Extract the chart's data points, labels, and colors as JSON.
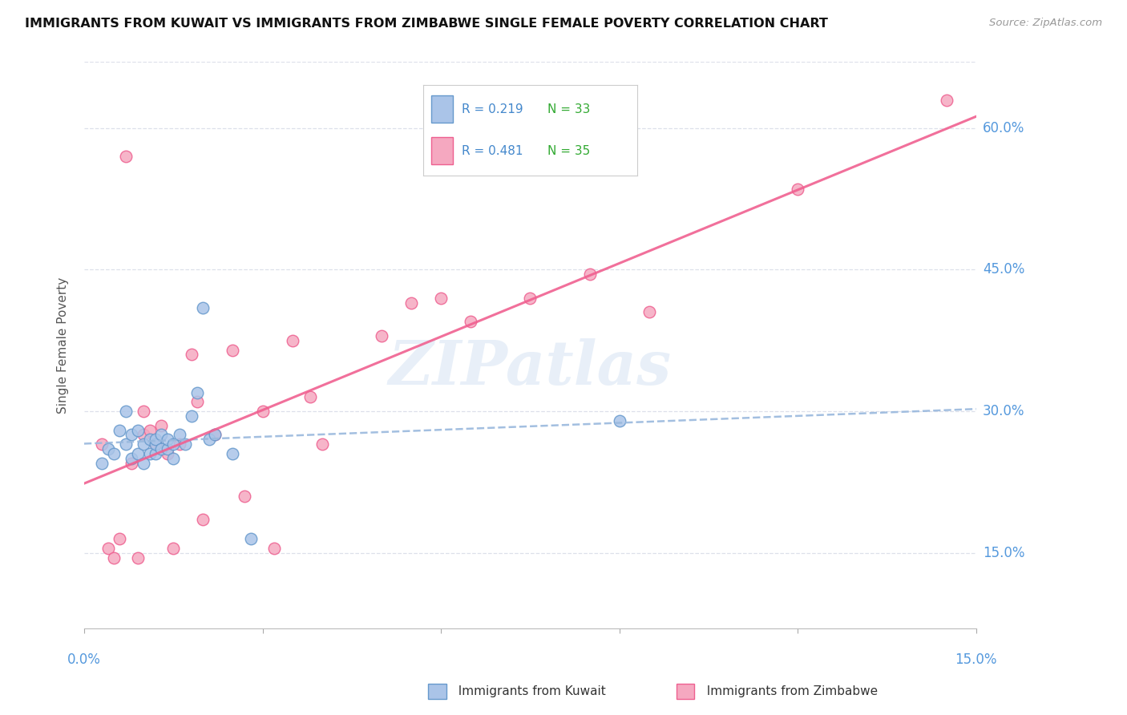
{
  "title": "IMMIGRANTS FROM KUWAIT VS IMMIGRANTS FROM ZIMBABWE SINGLE FEMALE POVERTY CORRELATION CHART",
  "source": "Source: ZipAtlas.com",
  "ylabel": "Single Female Poverty",
  "ytick_labels": [
    "15.0%",
    "30.0%",
    "45.0%",
    "60.0%"
  ],
  "ytick_values": [
    0.15,
    0.3,
    0.45,
    0.6
  ],
  "xlim": [
    0.0,
    0.15
  ],
  "ylim": [
    0.07,
    0.67
  ],
  "kuwait_color": "#aac4e8",
  "zimbabwe_color": "#f5a8c0",
  "kuwait_edge_color": "#6699cc",
  "zimbabwe_edge_color": "#ee6090",
  "kuwait_line_color": "#99b8dd",
  "zimbabwe_line_color": "#f06090",
  "legend_R_color": "#4488cc",
  "legend_N_color": "#33aa33",
  "legend_R_kuwait": "R = 0.219",
  "legend_N_kuwait": "N = 33",
  "legend_R_zimbabwe": "R = 0.481",
  "legend_N_zimbabwe": "N = 35",
  "watermark": "ZIPatlas",
  "grid_color": "#dde0ea",
  "background_color": "#ffffff",
  "kuwait_scatter_x": [
    0.003,
    0.004,
    0.005,
    0.006,
    0.007,
    0.007,
    0.008,
    0.008,
    0.009,
    0.009,
    0.01,
    0.01,
    0.011,
    0.011,
    0.012,
    0.012,
    0.012,
    0.013,
    0.013,
    0.014,
    0.014,
    0.015,
    0.015,
    0.016,
    0.017,
    0.018,
    0.019,
    0.02,
    0.021,
    0.022,
    0.025,
    0.028,
    0.09
  ],
  "kuwait_scatter_y": [
    0.245,
    0.26,
    0.255,
    0.28,
    0.3,
    0.265,
    0.25,
    0.275,
    0.255,
    0.28,
    0.245,
    0.265,
    0.255,
    0.27,
    0.255,
    0.265,
    0.27,
    0.26,
    0.275,
    0.26,
    0.27,
    0.25,
    0.265,
    0.275,
    0.265,
    0.295,
    0.32,
    0.41,
    0.27,
    0.275,
    0.255,
    0.165,
    0.29
  ],
  "zimbabwe_scatter_x": [
    0.003,
    0.004,
    0.005,
    0.006,
    0.007,
    0.008,
    0.009,
    0.01,
    0.01,
    0.011,
    0.012,
    0.013,
    0.014,
    0.015,
    0.016,
    0.018,
    0.019,
    0.02,
    0.022,
    0.025,
    0.027,
    0.03,
    0.032,
    0.035,
    0.038,
    0.04,
    0.05,
    0.055,
    0.06,
    0.065,
    0.075,
    0.085,
    0.095,
    0.12,
    0.145
  ],
  "zimbabwe_scatter_y": [
    0.265,
    0.155,
    0.145,
    0.165,
    0.57,
    0.245,
    0.145,
    0.275,
    0.3,
    0.28,
    0.265,
    0.285,
    0.255,
    0.155,
    0.265,
    0.36,
    0.31,
    0.185,
    0.275,
    0.365,
    0.21,
    0.3,
    0.155,
    0.375,
    0.315,
    0.265,
    0.38,
    0.415,
    0.42,
    0.395,
    0.42,
    0.445,
    0.405,
    0.535,
    0.63
  ]
}
